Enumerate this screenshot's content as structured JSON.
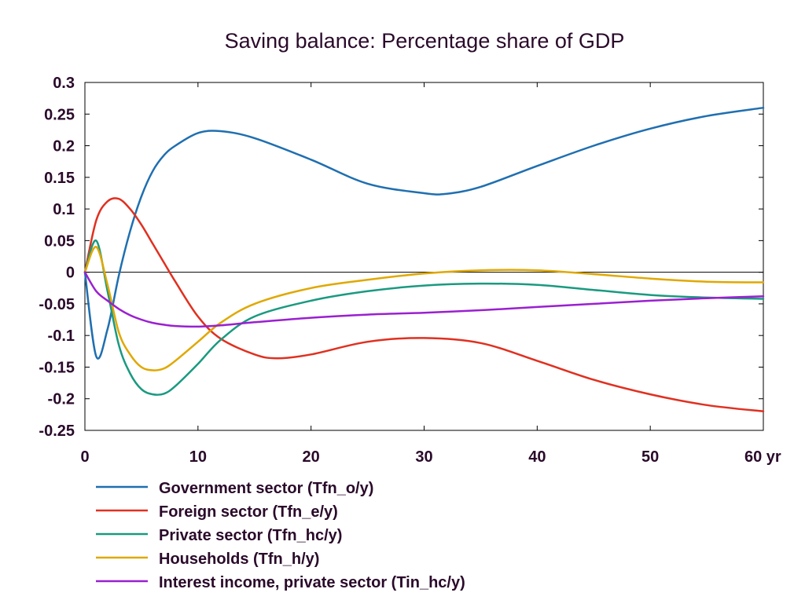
{
  "chart_data": {
    "type": "line",
    "title": "Saving balance: Percentage share of GDP",
    "xlabel": "",
    "ylabel": "",
    "xlim": [
      0,
      60
    ],
    "ylim": [
      -0.25,
      0.3
    ],
    "x_ticks": [
      "0",
      "10",
      "20",
      "30",
      "40",
      "50",
      "60 yr"
    ],
    "x_tick_values": [
      0,
      10,
      20,
      30,
      40,
      50,
      60
    ],
    "y_ticks": [
      "0.3",
      "0.25",
      "0.2",
      "0.15",
      "0.1",
      "0.05",
      "0",
      "-0.05",
      "-0.1",
      "-0.15",
      "-0.2",
      "-0.25"
    ],
    "y_tick_values": [
      0.3,
      0.25,
      0.2,
      0.15,
      0.1,
      0.05,
      0,
      -0.05,
      -0.1,
      -0.15,
      -0.2,
      -0.25
    ],
    "grid": false,
    "zero_line": true,
    "legend_position": "bottom",
    "series": [
      {
        "name": "Government sector (Tfn_o/y)",
        "color": "#1f6fb0",
        "x": [
          0,
          1,
          2,
          3,
          4,
          5,
          6,
          7,
          8,
          10,
          12,
          15,
          20,
          25,
          30,
          32,
          35,
          40,
          45,
          50,
          55,
          60
        ],
        "y": [
          0,
          -0.133,
          -0.09,
          -0.005,
          0.065,
          0.12,
          0.16,
          0.185,
          0.2,
          0.22,
          0.223,
          0.212,
          0.178,
          0.14,
          0.125,
          0.124,
          0.135,
          0.168,
          0.2,
          0.227,
          0.247,
          0.26
        ]
      },
      {
        "name": "Foreign sector (Tfn_e/y)",
        "color": "#e03020",
        "x": [
          0,
          1,
          2,
          3,
          4,
          5,
          6,
          7,
          8,
          10,
          12,
          15,
          17,
          20,
          25,
          30,
          35,
          40,
          45,
          50,
          55,
          60
        ],
        "y": [
          0,
          0.082,
          0.112,
          0.116,
          0.1,
          0.075,
          0.045,
          0.015,
          -0.015,
          -0.07,
          -0.105,
          -0.13,
          -0.136,
          -0.13,
          -0.11,
          -0.104,
          -0.112,
          -0.14,
          -0.17,
          -0.193,
          -0.21,
          -0.22
        ]
      },
      {
        "name": "Private sector (Tfn_hc/y)",
        "color": "#1a9a80",
        "x": [
          0,
          1,
          2,
          3,
          4,
          5,
          6,
          7,
          8,
          10,
          12,
          15,
          20,
          25,
          30,
          35,
          40,
          45,
          50,
          55,
          60
        ],
        "y": [
          0,
          0.05,
          -0.03,
          -0.115,
          -0.16,
          -0.185,
          -0.193,
          -0.192,
          -0.18,
          -0.145,
          -0.107,
          -0.07,
          -0.045,
          -0.03,
          -0.021,
          -0.018,
          -0.02,
          -0.028,
          -0.036,
          -0.04,
          -0.042
        ]
      },
      {
        "name": "Households (Tfn_h/y)",
        "color": "#e0a800",
        "x": [
          0,
          1,
          2,
          3,
          4,
          5,
          6,
          7,
          8,
          10,
          12,
          15,
          20,
          25,
          30,
          35,
          40,
          45,
          50,
          55,
          60
        ],
        "y": [
          0,
          0.04,
          -0.02,
          -0.095,
          -0.13,
          -0.15,
          -0.155,
          -0.152,
          -0.14,
          -0.11,
          -0.08,
          -0.05,
          -0.025,
          -0.012,
          -0.002,
          0.003,
          0.003,
          -0.003,
          -0.01,
          -0.015,
          -0.016
        ]
      },
      {
        "name": "Interest income, private sector (Tin_hc/y)",
        "color": "#9a20d0",
        "x": [
          0,
          1,
          2,
          3,
          4,
          5,
          6,
          7,
          8,
          10,
          12,
          15,
          20,
          25,
          30,
          35,
          40,
          45,
          50,
          55,
          60
        ],
        "y": [
          0,
          -0.03,
          -0.045,
          -0.058,
          -0.068,
          -0.075,
          -0.08,
          -0.083,
          -0.085,
          -0.086,
          -0.084,
          -0.079,
          -0.072,
          -0.067,
          -0.064,
          -0.06,
          -0.055,
          -0.05,
          -0.045,
          -0.041,
          -0.038
        ]
      }
    ]
  }
}
